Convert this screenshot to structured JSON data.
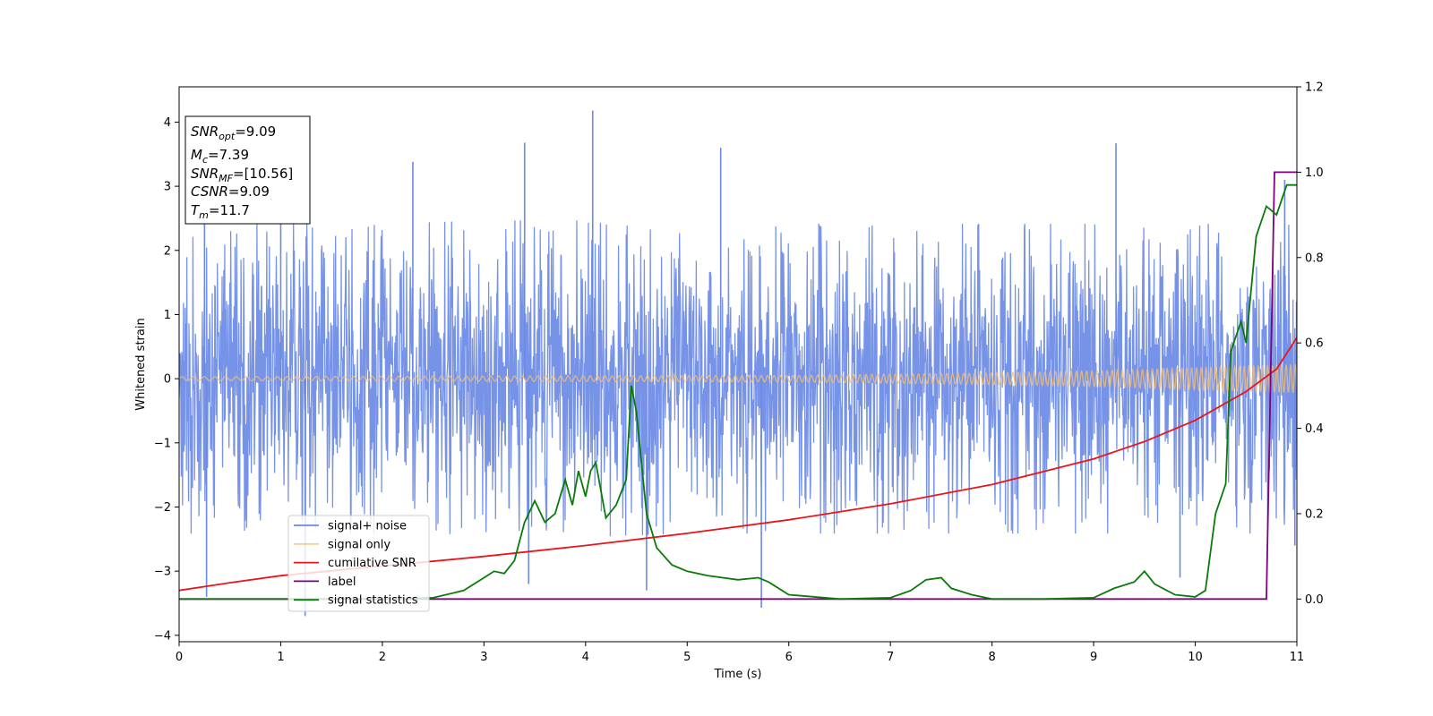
{
  "chart_data": {
    "type": "line",
    "xlabel": "Time (s)",
    "ylabel": "Whitened strain",
    "xlim": [
      0,
      11
    ],
    "ylim": [
      -4.1,
      4.55
    ],
    "y2lim": [
      -0.1,
      1.2
    ],
    "x_ticks": [
      0,
      1,
      2,
      3,
      4,
      5,
      6,
      7,
      8,
      9,
      10,
      11
    ],
    "y_ticks": [
      -4,
      -3,
      -2,
      -1,
      0,
      1,
      2,
      3,
      4
    ],
    "y2_ticks": [
      0.0,
      0.2,
      0.4,
      0.6,
      0.8,
      1.0,
      1.2
    ],
    "x_tick_labels": [
      "0",
      "1",
      "2",
      "3",
      "4",
      "5",
      "6",
      "7",
      "8",
      "9",
      "10",
      "11"
    ],
    "y_tick_labels": [
      "−4",
      "−3",
      "−2",
      "−1",
      "0",
      "1",
      "2",
      "3",
      "4"
    ],
    "y2_tick_labels": [
      "0.0",
      "0.2",
      "0.4",
      "0.6",
      "0.8",
      "1.0",
      "1.2"
    ],
    "grid": false,
    "legend_position": "lower-left",
    "info_box": {
      "position": "top-left",
      "entries": [
        {
          "main": "SNR",
          "sub": "opt",
          "value": "=9.09"
        },
        {
          "main": "M",
          "sub": "c",
          "value": "=7.39"
        },
        {
          "main": "SNR",
          "sub": "MF",
          "value": "=[10.56]"
        },
        {
          "main": "CSNR",
          "sub": "",
          "value": "=9.09"
        },
        {
          "main": "T",
          "sub": "m",
          "value": "=11.7"
        }
      ]
    },
    "series": [
      {
        "name": "signal+ noise",
        "color": "#6b8ae6",
        "axis": "left",
        "style": "noise-band",
        "envelope_upper": [
          [
            0,
            2.3
          ],
          [
            1,
            2.3
          ],
          [
            2,
            2.3
          ],
          [
            3,
            2.35
          ],
          [
            4,
            2.35
          ],
          [
            5,
            2.3
          ],
          [
            6,
            2.3
          ],
          [
            7,
            2.3
          ],
          [
            8,
            2.3
          ],
          [
            9,
            2.3
          ],
          [
            10,
            2.3
          ],
          [
            11,
            2.3
          ]
        ],
        "spikes": [
          [
            0.25,
            2.9
          ],
          [
            1.0,
            2.9
          ],
          [
            2.3,
            3.38
          ],
          [
            3.4,
            3.68
          ],
          [
            4.07,
            4.18
          ],
          [
            5.33,
            3.6
          ],
          [
            9.22,
            3.67
          ],
          [
            10.88,
            3.1
          ],
          [
            0.27,
            -3.4
          ],
          [
            1.24,
            -3.7
          ],
          [
            3.44,
            -3.2
          ],
          [
            5.73,
            -3.57
          ],
          [
            4.6,
            -3.3
          ],
          [
            9.85,
            -3.1
          ],
          [
            10.98,
            -2.6
          ]
        ]
      },
      {
        "name": "signal only",
        "color": "#f3bf72",
        "axis": "left",
        "style": "chirp",
        "amplitude": [
          [
            0,
            0.03
          ],
          [
            6,
            0.05
          ],
          [
            8,
            0.09
          ],
          [
            9,
            0.12
          ],
          [
            10,
            0.17
          ],
          [
            11,
            0.22
          ]
        ]
      },
      {
        "name": "cumilative SNR",
        "color": "#e8161a",
        "axis": "left",
        "points": [
          [
            0,
            -3.3
          ],
          [
            0.5,
            -3.18
          ],
          [
            1,
            -3.07
          ],
          [
            2,
            -2.92
          ],
          [
            3,
            -2.77
          ],
          [
            4,
            -2.6
          ],
          [
            5,
            -2.41
          ],
          [
            6,
            -2.2
          ],
          [
            7,
            -1.95
          ],
          [
            8,
            -1.65
          ],
          [
            9,
            -1.25
          ],
          [
            9.5,
            -0.98
          ],
          [
            10,
            -0.65
          ],
          [
            10.5,
            -0.2
          ],
          [
            10.8,
            0.15
          ],
          [
            11,
            0.64
          ]
        ]
      },
      {
        "name": "label",
        "color": "#800080",
        "axis": "right",
        "points": [
          [
            0,
            0.0
          ],
          [
            10.7,
            0.0
          ],
          [
            10.78,
            1.0
          ],
          [
            11,
            1.0
          ]
        ]
      },
      {
        "name": "signal statistics",
        "color": "#0a7a0a",
        "axis": "right",
        "points": [
          [
            0,
            0.0
          ],
          [
            1,
            0.0
          ],
          [
            2,
            0.0
          ],
          [
            2.5,
            0.003
          ],
          [
            2.8,
            0.02
          ],
          [
            3.0,
            0.05
          ],
          [
            3.1,
            0.065
          ],
          [
            3.2,
            0.06
          ],
          [
            3.3,
            0.09
          ],
          [
            3.4,
            0.18
          ],
          [
            3.5,
            0.23
          ],
          [
            3.6,
            0.18
          ],
          [
            3.7,
            0.2
          ],
          [
            3.8,
            0.28
          ],
          [
            3.87,
            0.22
          ],
          [
            3.93,
            0.3
          ],
          [
            4.0,
            0.24
          ],
          [
            4.05,
            0.3
          ],
          [
            4.1,
            0.32
          ],
          [
            4.2,
            0.19
          ],
          [
            4.3,
            0.22
          ],
          [
            4.4,
            0.28
          ],
          [
            4.45,
            0.5
          ],
          [
            4.5,
            0.44
          ],
          [
            4.6,
            0.2
          ],
          [
            4.7,
            0.12
          ],
          [
            4.85,
            0.08
          ],
          [
            5.0,
            0.065
          ],
          [
            5.2,
            0.055
          ],
          [
            5.5,
            0.045
          ],
          [
            5.7,
            0.05
          ],
          [
            5.8,
            0.04
          ],
          [
            6.0,
            0.01
          ],
          [
            6.5,
            0.0
          ],
          [
            7.0,
            0.003
          ],
          [
            7.2,
            0.02
          ],
          [
            7.35,
            0.045
          ],
          [
            7.5,
            0.05
          ],
          [
            7.6,
            0.025
          ],
          [
            7.8,
            0.01
          ],
          [
            8.0,
            0.0
          ],
          [
            8.5,
            0.0
          ],
          [
            9.0,
            0.003
          ],
          [
            9.2,
            0.025
          ],
          [
            9.4,
            0.04
          ],
          [
            9.5,
            0.065
          ],
          [
            9.6,
            0.035
          ],
          [
            9.8,
            0.01
          ],
          [
            10.0,
            0.005
          ],
          [
            10.1,
            0.02
          ],
          [
            10.2,
            0.2
          ],
          [
            10.3,
            0.27
          ],
          [
            10.35,
            0.58
          ],
          [
            10.45,
            0.65
          ],
          [
            10.5,
            0.6
          ],
          [
            10.6,
            0.85
          ],
          [
            10.7,
            0.92
          ],
          [
            10.8,
            0.9
          ],
          [
            10.9,
            0.97
          ],
          [
            11.0,
            0.97
          ]
        ]
      }
    ]
  }
}
